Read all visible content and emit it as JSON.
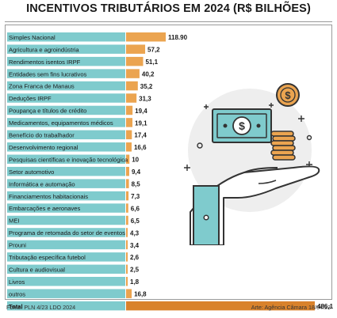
{
  "title": "INCENTIVOS TRIBUTÁRIOS EM 2024 (R$ BILHÕES)",
  "source": "Fonte: PLN 4/23 LDO 2024",
  "credit": "Arte: Agência Câmara 18/04/23",
  "colors": {
    "label_bar": "#7fcbcd",
    "value_bar": "#eba450",
    "total_bar": "#d9822b"
  },
  "chart_data": {
    "type": "bar",
    "orientation": "horizontal",
    "categories": [
      "Simples Nacional",
      "Agricultura e agroindústria",
      "Rendimentos isentos IRPF",
      "Entidades sem fins lucrativos",
      "Zona Franca de Manaus",
      "Deduções IRPF",
      "Poupança e títulos de crédito",
      "Medicamentos, equipamentos médicos",
      "Benefício do trabalhador",
      "Desenvolvimento regional",
      "Pesquisas científicas e inovação tecnológica",
      "Setor automotivo",
      "Informática e automação",
      "Financiamentos habitacionais",
      "Embarcações e aeronaves",
      "MEI",
      "Programa de retomada do setor de eventos",
      "Prouni",
      "Tributação específica futebol",
      "Cultura e audiovisual",
      "Livros",
      "outros",
      "Total"
    ],
    "values": [
      118.9,
      57.2,
      51.1,
      40.2,
      35.2,
      31.3,
      19.4,
      19.1,
      17.4,
      16.6,
      10,
      9.4,
      8.5,
      7.3,
      6.6,
      6.5,
      4.3,
      3.4,
      2.6,
      2.5,
      1.8,
      16.8,
      486.1
    ],
    "value_labels": [
      "118.90",
      "57,2",
      "51,1",
      "40,2",
      "35,2",
      "31,3",
      "19,4",
      "19,1",
      "17,4",
      "16,6",
      "10",
      "9,4",
      "8,5",
      "7,3",
      "6,6",
      "6,5",
      "4,3",
      "3,4",
      "2,6",
      "2,5",
      "1,8",
      "16,8",
      "486,1"
    ]
  }
}
